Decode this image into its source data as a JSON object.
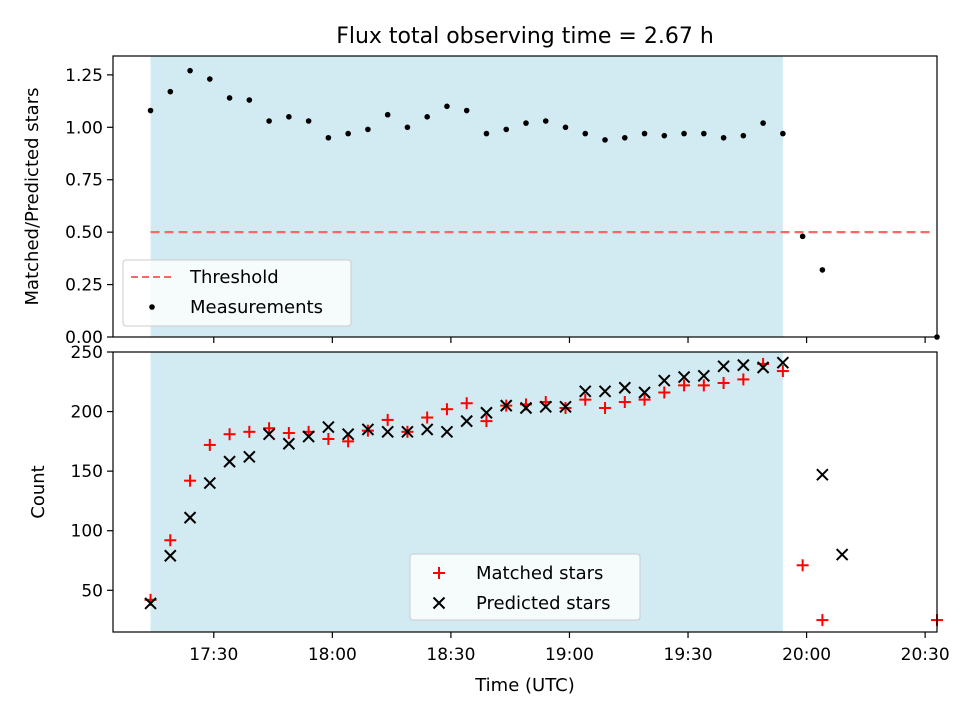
{
  "figure": {
    "title": "Flux total observing time = 2.67 h",
    "xlabel": "Time (UTC)",
    "x_ticks": [
      "17:30",
      "18:00",
      "18:30",
      "19:00",
      "19:30",
      "20:00",
      "20:30"
    ],
    "x_tick_minutes": [
      1050,
      1080,
      1110,
      1140,
      1170,
      1200,
      1230
    ],
    "x_range_minutes": [
      1024.5,
      1233
    ],
    "shaded_interval_minutes": [
      1034.0,
      1194.0
    ],
    "shade_color": "#add8e6"
  },
  "chart_data": [
    {
      "type": "scatter",
      "ylabel": "Matched/Predicted stars",
      "ylim": [
        0,
        1.34
      ],
      "y_ticks": [
        "0.00",
        "0.25",
        "0.50",
        "0.75",
        "1.00",
        "1.25"
      ],
      "y_tick_values": [
        0,
        0.25,
        0.5,
        0.75,
        1.0,
        1.25
      ],
      "threshold": {
        "name": "Threshold",
        "value": 0.5,
        "color": "#ff6666",
        "style": "dashed"
      },
      "series": [
        {
          "name": "Measurements",
          "color": "#000000",
          "marker": "dot",
          "x_minutes": [
            1034,
            1039,
            1044,
            1049,
            1054,
            1059,
            1064,
            1069,
            1074,
            1079,
            1084,
            1089,
            1094,
            1099,
            1104,
            1109,
            1114,
            1119,
            1124,
            1129,
            1134,
            1139,
            1144,
            1149,
            1154,
            1159,
            1164,
            1169,
            1174,
            1179,
            1184,
            1189,
            1194,
            1199,
            1204,
            1233
          ],
          "y": [
            1.08,
            1.17,
            1.27,
            1.23,
            1.14,
            1.13,
            1.03,
            1.05,
            1.03,
            0.95,
            0.97,
            0.99,
            1.06,
            1.0,
            1.05,
            1.1,
            1.08,
            0.97,
            0.99,
            1.02,
            1.03,
            1.0,
            0.97,
            0.94,
            0.95,
            0.97,
            0.96,
            0.97,
            0.97,
            0.95,
            0.96,
            1.02,
            0.97,
            0.48,
            0.32,
            0.0
          ]
        }
      ],
      "legend": {
        "placement": "lower-left"
      }
    },
    {
      "type": "scatter",
      "ylabel": "Count",
      "ylim": [
        15,
        250
      ],
      "y_ticks": [
        "50",
        "100",
        "150",
        "200",
        "250"
      ],
      "y_tick_values": [
        50,
        100,
        150,
        200,
        250
      ],
      "series": [
        {
          "name": "Matched stars",
          "color": "#ff0000",
          "marker": "plus",
          "x_minutes": [
            1034,
            1039,
            1044,
            1049,
            1054,
            1059,
            1064,
            1069,
            1074,
            1079,
            1084,
            1089,
            1094,
            1099,
            1104,
            1109,
            1114,
            1119,
            1124,
            1129,
            1134,
            1139,
            1144,
            1149,
            1154,
            1159,
            1164,
            1169,
            1174,
            1179,
            1184,
            1189,
            1194,
            1199,
            1204,
            1233
          ],
          "y": [
            42,
            92,
            142,
            172,
            181,
            183,
            186,
            182,
            183,
            177,
            175,
            184,
            193,
            183,
            195,
            202,
            207,
            192,
            205,
            206,
            208,
            203,
            210,
            203,
            208,
            210,
            216,
            222,
            222,
            224,
            227,
            240,
            234,
            71,
            25,
            25
          ]
        },
        {
          "name": "Predicted stars",
          "color": "#000000",
          "marker": "x",
          "x_minutes": [
            1034,
            1039,
            1044,
            1049,
            1054,
            1059,
            1064,
            1069,
            1074,
            1079,
            1084,
            1089,
            1094,
            1099,
            1104,
            1109,
            1114,
            1119,
            1124,
            1129,
            1134,
            1139,
            1144,
            1149,
            1154,
            1159,
            1164,
            1169,
            1174,
            1179,
            1184,
            1189,
            1194,
            1204,
            1209
          ],
          "y": [
            39,
            79,
            111,
            140,
            158,
            162,
            181,
            173,
            179,
            187,
            181,
            185,
            183,
            183,
            185,
            183,
            192,
            199,
            205,
            203,
            204,
            204,
            217,
            217,
            220,
            216,
            226,
            229,
            230,
            238,
            239,
            237,
            241,
            147,
            80
          ]
        }
      ],
      "legend": {
        "placement": "lower-center"
      }
    }
  ]
}
